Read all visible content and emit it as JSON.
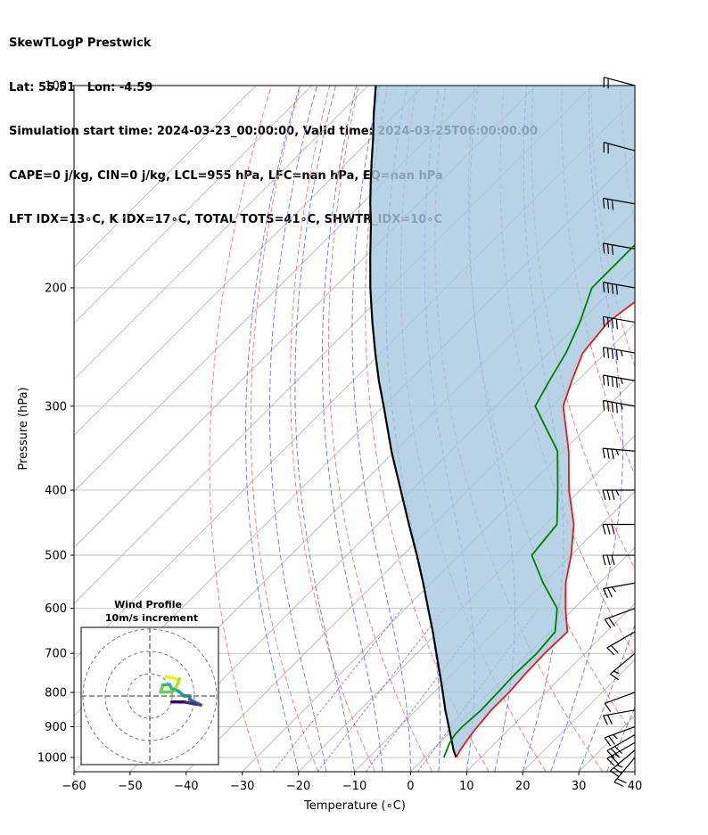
{
  "header": {
    "line1": "SkewTLogP Prestwick",
    "line2": "Lat: 55.51   Lon: -4.59",
    "line3": "Simulation start time: 2024-03-23_00:00:00, Valid time: 2024-03-25T06:00:00.00",
    "line4": "CAPE=0 j/kg, CIN=0 j/kg, LCL=955 hPa, LFC=nan hPa, EQ=nan hPa",
    "line5": "LFT IDX=13∘C, K IDX=17∘C, TOTAL TOTS=41∘C, SHWTR_IDX=10∘C"
  },
  "chart_data": [
    {
      "type": "line",
      "xlabel": "Temperature (∘C)",
      "ylabel": "Pressure (hPa)",
      "xlim": [
        -60,
        40
      ],
      "ylim": [
        1050,
        100
      ],
      "y_scale": "log",
      "skew": "45deg",
      "grid": true,
      "x_ticks": [
        -60,
        -50,
        -40,
        -30,
        -20,
        -10,
        0,
        10,
        20,
        30,
        40
      ],
      "y_ticks": [
        1000,
        900,
        800,
        700,
        600,
        500,
        400,
        300,
        200,
        100
      ],
      "colors": {
        "temperature": "#e41a1c",
        "dewpoint": "#008000",
        "parcel": "#000000",
        "shading": "#a6c8e0",
        "dry_adiabats": "#ff6b6b",
        "moist_adiabats": "#5a6cff",
        "mixing_ratio": "#9a55c8"
      },
      "series": [
        {
          "key": "temperature",
          "pressure": [
            1000,
            975,
            950,
            925,
            900,
            850,
            800,
            750,
            700,
            650,
            600,
            550,
            500,
            450,
            400,
            350,
            300,
            275,
            250,
            225,
            200,
            180,
            160,
            150,
            140,
            130,
            120,
            110,
            100
          ],
          "values": [
            5.6,
            5,
            4.6,
            4.2,
            3.9,
            3.4,
            3.4,
            3.0,
            2.8,
            3.0,
            -1.5,
            -6,
            -10,
            -15,
            -22,
            -29,
            -38,
            -41,
            -44,
            -45,
            -43,
            -42,
            -36,
            -34,
            -31,
            -24,
            -20,
            -15,
            -11
          ]
        },
        {
          "key": "dewpoint",
          "pressure": [
            1000,
            975,
            950,
            925,
            900,
            850,
            800,
            750,
            700,
            650,
            600,
            550,
            500,
            450,
            400,
            350,
            300,
            275,
            250,
            225,
            200,
            180,
            160,
            150,
            140,
            130,
            120,
            110,
            100
          ],
          "values": [
            3.4,
            2.6,
            1.8,
            1.3,
            1.2,
            1.6,
            1.4,
            1.2,
            1.4,
            0.8,
            -3,
            -10,
            -17,
            -18,
            -24,
            -31,
            -43,
            -45,
            -47,
            -50,
            -54,
            -54,
            -54,
            -57,
            -56,
            -52,
            -47,
            -42,
            -37
          ]
        },
        {
          "key": "parcel",
          "pressure": [
            1000,
            975,
            950,
            925,
            900,
            850,
            800,
            750,
            700,
            650,
            600,
            550,
            500,
            450,
            400,
            350,
            300,
            275,
            250,
            225,
            200,
            180,
            160,
            150,
            140,
            130,
            120,
            110,
            100
          ],
          "values": [
            5.6,
            3.8,
            2.2,
            0.5,
            -1.2,
            -4.8,
            -8.4,
            -12.3,
            -16.5,
            -21,
            -26,
            -31.4,
            -37.5,
            -44.4,
            -52,
            -60.6,
            -70,
            -75.4,
            -81,
            -87,
            -93.5,
            -99,
            -105,
            -108.5,
            -112,
            -115.7,
            -119.6,
            -124,
            -128.6
          ]
        }
      ],
      "wind_barbs": {
        "pressure": [
          1000,
          975,
          950,
          925,
          900,
          850,
          800,
          700,
          650,
          600,
          550,
          500,
          450,
          400,
          350,
          300,
          275,
          250,
          225,
          200,
          175,
          150,
          125,
          100
        ],
        "speed_kt": [
          22,
          25,
          28,
          30,
          25,
          20,
          10,
          15,
          20,
          20,
          25,
          30,
          30,
          35,
          35,
          45,
          45,
          45,
          40,
          40,
          30,
          30,
          20,
          20
        ],
        "direction_deg": [
          220,
          230,
          240,
          240,
          250,
          260,
          250,
          230,
          240,
          250,
          260,
          270,
          270,
          270,
          275,
          280,
          280,
          280,
          280,
          280,
          280,
          280,
          285,
          285
        ]
      }
    },
    {
      "type": "line",
      "title": "Wind Profile",
      "subtitle": "10m/s increment",
      "colormap": "viridis"
    }
  ]
}
